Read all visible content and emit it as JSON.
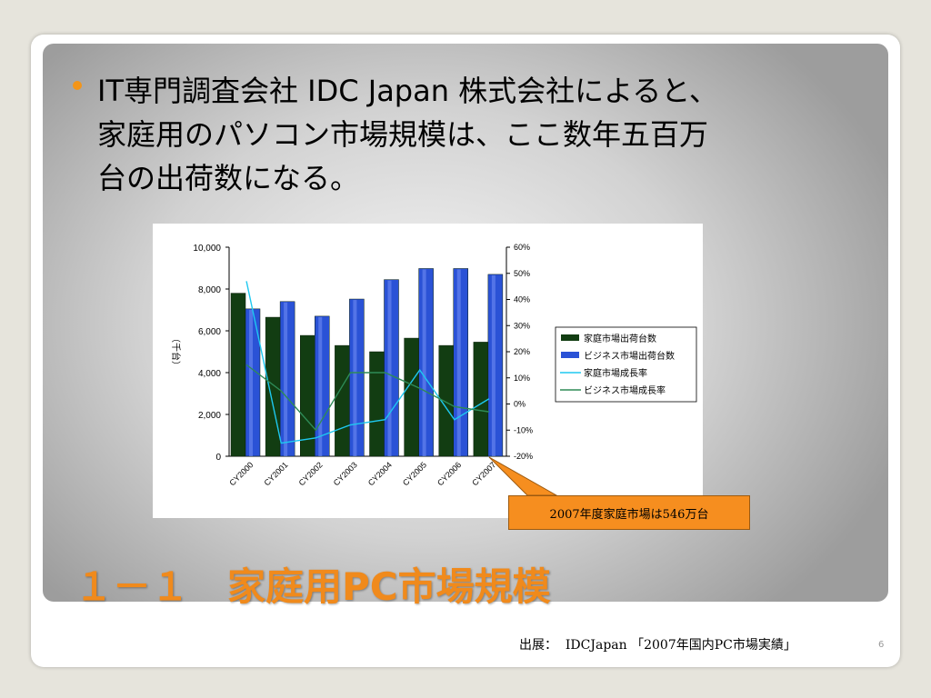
{
  "slide": {
    "bullet_lines": [
      "IT専門調査会社 IDC Japan 株式会社によると、",
      "家庭用のパソコン市場規模は、ここ数年五百万",
      "台の出荷数になる。"
    ],
    "title": "１－１　家庭用PC市場規模",
    "callout": "2007年度家庭市場は546万台",
    "source": "出展：  IDCJapan 「2007年国内PC市場実績」",
    "page_number": "6",
    "colors": {
      "title": "#f08a1c",
      "bullet": "#f49518",
      "callout_fill": "#f68e1f"
    }
  },
  "chart_data": {
    "type": "bar",
    "categories": [
      "CY2000",
      "CY2001",
      "CY2002",
      "CY2003",
      "CY2004",
      "CY2005",
      "CY2006",
      "CY2007"
    ],
    "ylabel": "（千台）",
    "ylim": [
      0,
      10000
    ],
    "yticks": [
      "10,000",
      "8,000",
      "6,000",
      "4,000",
      "2,000",
      "0"
    ],
    "y2lim": [
      -20,
      60
    ],
    "y2ticks": [
      "60%",
      "50%",
      "40%",
      "30%",
      "20%",
      "10%",
      "0%",
      "-10%",
      "-20%"
    ],
    "legend_position": "right",
    "series": [
      {
        "name": "家庭市場出荷台数",
        "type": "bar",
        "axis": "left",
        "color": "#123d12",
        "values": [
          7800,
          6650,
          5780,
          5300,
          5000,
          5650,
          5300,
          5460
        ]
      },
      {
        "name": "ビジネス市場出荷台数",
        "type": "bar",
        "axis": "left",
        "color": "#2a52d6",
        "values": [
          7050,
          7400,
          6700,
          7520,
          8450,
          8980,
          8980,
          8700
        ]
      },
      {
        "name": "家庭市場成長率",
        "type": "line",
        "axis": "right",
        "color": "#1ec8f0",
        "values": [
          47,
          -15,
          -13,
          -8,
          -6,
          13,
          -6,
          2
        ]
      },
      {
        "name": "ビジネス市場成長率",
        "type": "line",
        "axis": "right",
        "color": "#2e8b57",
        "values": [
          15,
          5,
          -10,
          12,
          12,
          6,
          -1,
          -3
        ]
      }
    ]
  }
}
